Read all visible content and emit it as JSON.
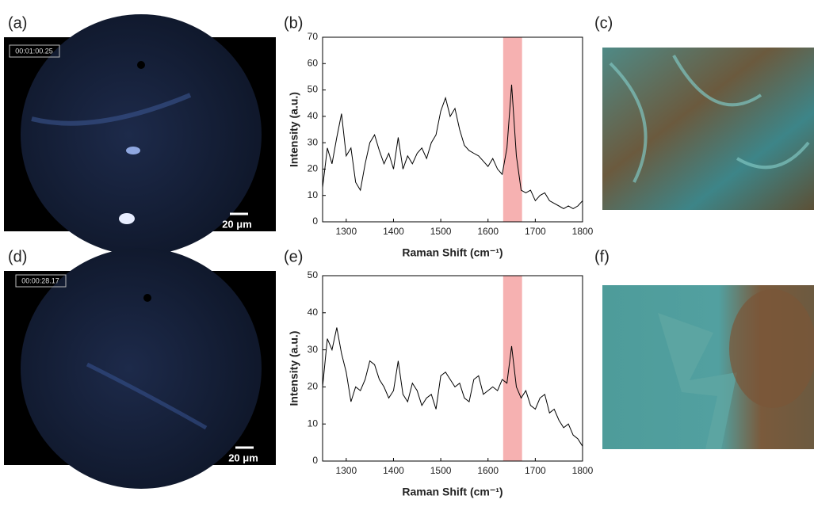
{
  "panels": [
    {
      "label": "(a)",
      "timestamp": "00:01:00.25",
      "scale_bar": "20 μm"
    },
    {
      "label": "(b)"
    },
    {
      "label": "(c)"
    },
    {
      "label": "(d)",
      "timestamp": "00:00:28.17",
      "scale_bar": "20 μm"
    },
    {
      "label": "(e)"
    },
    {
      "label": "(f)"
    }
  ],
  "chart_data": [
    {
      "type": "line",
      "x_label": "Raman Shift (cm⁻¹)",
      "y_label": "Intensity (a.u.)",
      "color": "#000000",
      "highlight_range": [
        1632,
        1672
      ],
      "highlight_color": "#f4a3a3",
      "x": [
        1250,
        1260,
        1270,
        1280,
        1290,
        1300,
        1310,
        1320,
        1330,
        1340,
        1350,
        1360,
        1370,
        1380,
        1390,
        1400,
        1410,
        1420,
        1430,
        1440,
        1450,
        1460,
        1470,
        1480,
        1490,
        1500,
        1510,
        1520,
        1530,
        1540,
        1550,
        1560,
        1570,
        1580,
        1590,
        1600,
        1610,
        1620,
        1630,
        1640,
        1650,
        1660,
        1670,
        1680,
        1690,
        1700,
        1710,
        1720,
        1730,
        1740,
        1750,
        1760,
        1770,
        1780,
        1790,
        1800
      ],
      "values": [
        13,
        28,
        22,
        32,
        41,
        25,
        28,
        15,
        12,
        22,
        30,
        33,
        27,
        22,
        26,
        20,
        32,
        20,
        25,
        22,
        26,
        28,
        24,
        30,
        33,
        42,
        47,
        40,
        43,
        35,
        29,
        27,
        26,
        25,
        23,
        21,
        24,
        20,
        18,
        28,
        52,
        25,
        12,
        11,
        12,
        8,
        10,
        11,
        8,
        7,
        6,
        5,
        6,
        5,
        6,
        8
      ],
      "xlim": [
        1250,
        1800
      ],
      "xticks": [
        1300,
        1400,
        1500,
        1600,
        1700,
        1800
      ],
      "ylim": [
        0,
        70
      ],
      "yticks": [
        0,
        10,
        20,
        30,
        40,
        50,
        60,
        70
      ]
    },
    {
      "type": "line",
      "x_label": "Raman Shift (cm⁻¹)",
      "y_label": "Intensity (a.u.)",
      "color": "#000000",
      "highlight_range": [
        1632,
        1672
      ],
      "highlight_color": "#f4a3a3",
      "x": [
        1250,
        1260,
        1270,
        1280,
        1290,
        1300,
        1310,
        1320,
        1330,
        1340,
        1350,
        1360,
        1370,
        1380,
        1390,
        1400,
        1410,
        1420,
        1430,
        1440,
        1450,
        1460,
        1470,
        1480,
        1490,
        1500,
        1510,
        1520,
        1530,
        1540,
        1550,
        1560,
        1570,
        1580,
        1590,
        1600,
        1610,
        1620,
        1630,
        1640,
        1650,
        1660,
        1670,
        1680,
        1690,
        1700,
        1710,
        1720,
        1730,
        1740,
        1750,
        1760,
        1770,
        1780,
        1790,
        1800
      ],
      "values": [
        20,
        33,
        30,
        36,
        29,
        24,
        16,
        20,
        19,
        22,
        27,
        26,
        22,
        20,
        17,
        19,
        27,
        18,
        16,
        21,
        19,
        15,
        17,
        18,
        14,
        23,
        24,
        22,
        20,
        21,
        17,
        16,
        22,
        23,
        18,
        19,
        20,
        19,
        22,
        21,
        31,
        20,
        17,
        19,
        15,
        14,
        17,
        18,
        13,
        14,
        11,
        9,
        10,
        7,
        6,
        4
      ],
      "xlim": [
        1250,
        1800
      ],
      "xticks": [
        1300,
        1400,
        1500,
        1600,
        1700,
        1800
      ],
      "ylim": [
        0,
        50
      ],
      "yticks": [
        0,
        10,
        20,
        30,
        40,
        50
      ]
    }
  ]
}
